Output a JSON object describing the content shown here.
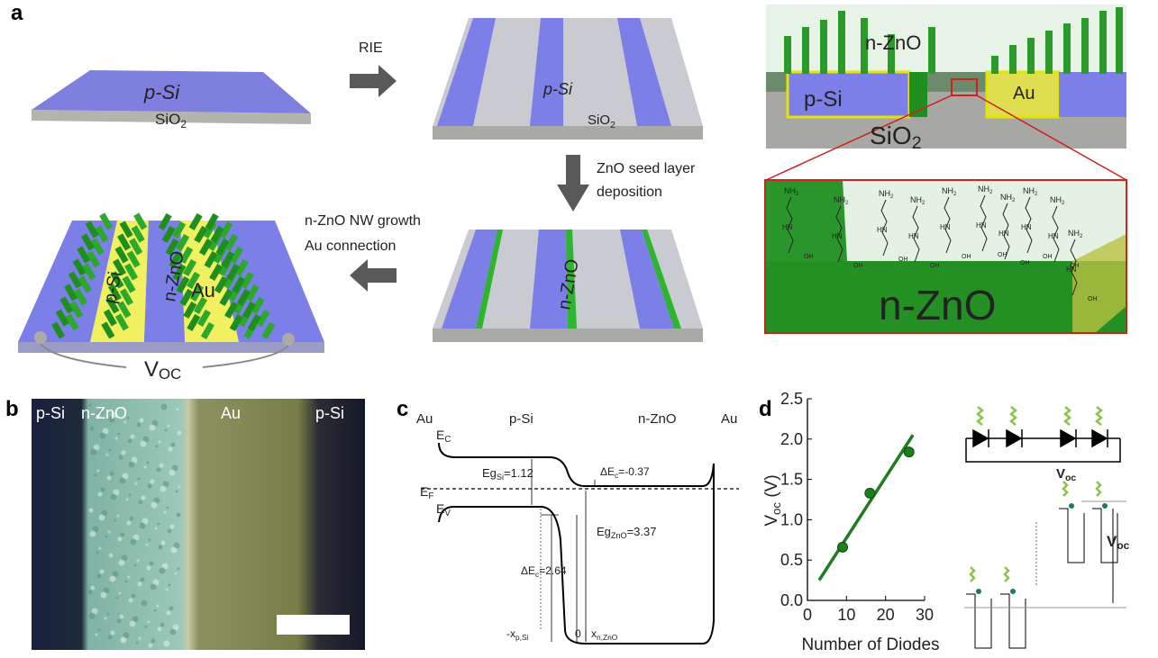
{
  "panel_labels": [
    "a",
    "b",
    "c",
    "d"
  ],
  "panel_a": {
    "step1": {
      "layer": "p-Si",
      "substrate": {
        "base": "SiO",
        "sub": "2"
      }
    },
    "arrow1": "RIE",
    "step2": {
      "layer": "p-Si",
      "substrate": {
        "base": "SiO",
        "sub": "2"
      }
    },
    "arrow2": [
      "ZnO seed layer",
      "deposition"
    ],
    "step3": {
      "layer": "n-ZnO"
    },
    "arrow3": [
      "n-ZnO NW growth",
      "Au connection"
    ],
    "step4": {
      "labels": [
        "p-Si",
        "n-ZnO",
        "Au"
      ],
      "voltage": {
        "base": "V",
        "sub": "OC"
      }
    },
    "cross_section": {
      "labels": [
        "n-ZnO",
        "p-Si",
        "Au"
      ],
      "substrate": {
        "base": "SiO",
        "sub": "2"
      }
    },
    "zoom": {
      "label": "n-ZnO",
      "amine": {
        "base": "NH",
        "sub": "2"
      },
      "imine": "HN",
      "hydroxyl": "OH"
    }
  },
  "panel_b": {
    "labels": [
      "p-Si",
      "n-ZnO",
      "Au",
      "p-Si"
    ]
  },
  "panel_c": {
    "regions": [
      "Au",
      "p-Si",
      "n-ZnO",
      "Au"
    ],
    "ec": {
      "base": "E",
      "sub": "C"
    },
    "ef": {
      "base": "E",
      "sub": "F"
    },
    "ev": {
      "base": "E",
      "sub": "V"
    },
    "eg_si": {
      "base": "Eg",
      "sub": "Si",
      "value": "=1.12"
    },
    "dec_top": {
      "base": "ΔE",
      "sub": "c",
      "value": "=-0.37"
    },
    "eg_zno": {
      "base": "Eg",
      "sub": "ZnO",
      "value": "=3.37"
    },
    "dec_bottom": {
      "base": "ΔE",
      "sub": "c",
      "value": "=2.64"
    },
    "xp": {
      "base": "-x",
      "sub": "p,Si"
    },
    "zero": "0",
    "xn": {
      "base": "x",
      "sub": "n,ZnO"
    }
  },
  "chart_data": {
    "type": "scatter",
    "xlabel": "Number of Diodes",
    "ylabel": {
      "base": "V",
      "sub": "oc",
      "unit": " (V)"
    },
    "x": [
      9,
      16,
      26
    ],
    "values": [
      0.66,
      1.33,
      1.84
    ],
    "color": "#1e7d1e",
    "fit": {
      "x": [
        3,
        27
      ],
      "values": [
        0.25,
        2.05
      ]
    },
    "xlim": [
      0,
      30
    ],
    "ylim": [
      0,
      2.5
    ],
    "xticks": [
      0,
      10,
      20,
      30
    ],
    "yticks": [
      {
        "value": 0,
        "label": "0.0"
      },
      0.5,
      {
        "value": 1,
        "label": "1.0"
      },
      1.5,
      {
        "value": 2,
        "label": "2.0"
      },
      2.5
    ],
    "insets": {
      "circuit": {
        "base": "V",
        "sub": "oc"
      },
      "bands": {
        "base": "V",
        "sub": "oc"
      }
    }
  }
}
